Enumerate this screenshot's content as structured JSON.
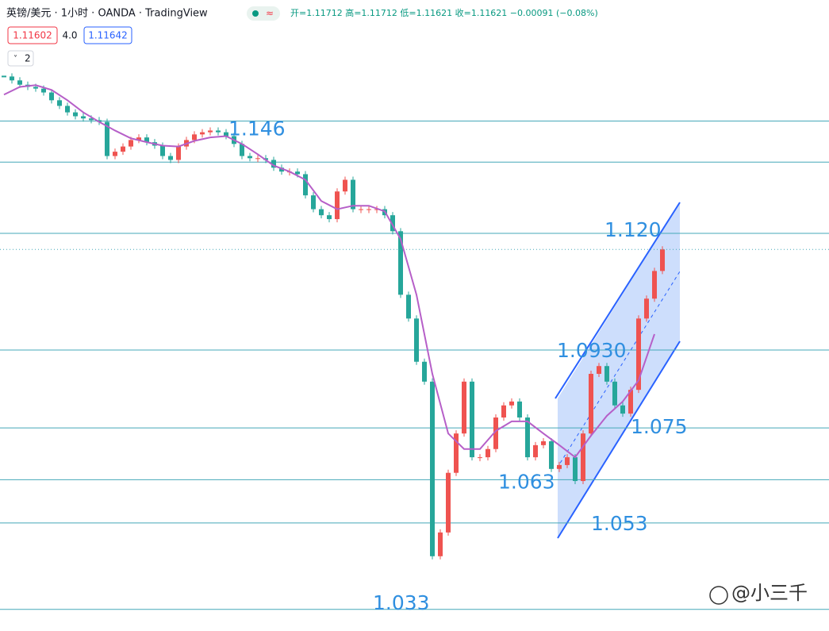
{
  "header": {
    "title": "英镑/美元 · 1小时 · OANDA · TradingView",
    "ohlc": "开=1.11712 高=1.11712 低=1.11621 收=1.11621 −0.00091 (−0.08%)",
    "bid": "1.11602",
    "spread": "4.0",
    "ask": "1.11642",
    "indicators": "2",
    "watermark": "@小三千"
  },
  "chart_data": {
    "type": "candlestick",
    "ylim": [
      1.028,
      1.174
    ],
    "close": [
      1.1563,
      1.1554,
      1.1544,
      1.1539,
      1.1535,
      1.1526,
      1.1508,
      1.1495,
      1.148,
      1.1471,
      1.1466,
      1.1462,
      1.1458,
      1.1379,
      1.1389,
      1.1401,
      1.1416,
      1.1422,
      1.1411,
      1.1403,
      1.1379,
      1.137,
      1.1401,
      1.1416,
      1.1429,
      1.1434,
      1.1438,
      1.1434,
      1.1425,
      1.1407,
      1.1379,
      1.1374,
      1.1374,
      1.137,
      1.1352,
      1.1343,
      1.1343,
      1.1337,
      1.1288,
      1.1256,
      1.1242,
      1.1233,
      1.1297,
      1.1324,
      1.1256,
      1.1256,
      1.1256,
      1.1256,
      1.1242,
      1.1205,
      1.1058,
      1.1003,
      1.0903,
      1.0857,
      1.0453,
      1.0508,
      1.0646,
      1.0737,
      1.0857,
      1.0682,
      1.0682,
      1.0701,
      1.0774,
      1.0802,
      1.0811,
      1.0774,
      1.0682,
      1.071,
      1.0719,
      1.0655,
      1.0664,
      1.0682,
      1.0627,
      1.0737,
      1.0875,
      1.0893,
      1.0857,
      1.0802,
      1.0783,
      1.0838,
      1.1003,
      1.1049,
      1.1113,
      1.1163
    ],
    "up_color": "#ef5350",
    "down_color": "#26a69a",
    "ma": {
      "color": "#b65fc8",
      "x": [
        0,
        2,
        4,
        6,
        8,
        10,
        12,
        14,
        16,
        18,
        20,
        22,
        24,
        26,
        28,
        30,
        32,
        34,
        36,
        38,
        40,
        42,
        44,
        46,
        48,
        50,
        52,
        54,
        56,
        58,
        60,
        62,
        64,
        66,
        68,
        70,
        72,
        74,
        76,
        78,
        80,
        82
      ],
      "values": [
        1.1521,
        1.1539,
        1.1543,
        1.1532,
        1.1508,
        1.148,
        1.1458,
        1.1438,
        1.142,
        1.1411,
        1.1403,
        1.1401,
        1.1414,
        1.1422,
        1.1425,
        1.1407,
        1.1383,
        1.1357,
        1.1343,
        1.1324,
        1.1275,
        1.1256,
        1.1264,
        1.1264,
        1.1251,
        1.1187,
        1.1058,
        1.0875,
        1.0737,
        1.0701,
        1.0701,
        1.0743,
        1.0765,
        1.0765,
        1.0737,
        1.071,
        1.0682,
        1.0732,
        1.0778,
        1.0811,
        1.086,
        1.0967
      ]
    },
    "levels": [
      1.146,
      1.1365,
      1.12,
      1.093,
      1.075,
      1.063,
      1.053,
      1.033
    ],
    "level_labels": [
      "1.146",
      null,
      "1.120",
      "1.0930",
      "1.075",
      "1.063",
      "1.053",
      "1.033"
    ],
    "level_color": "#45a8b8"
  }
}
